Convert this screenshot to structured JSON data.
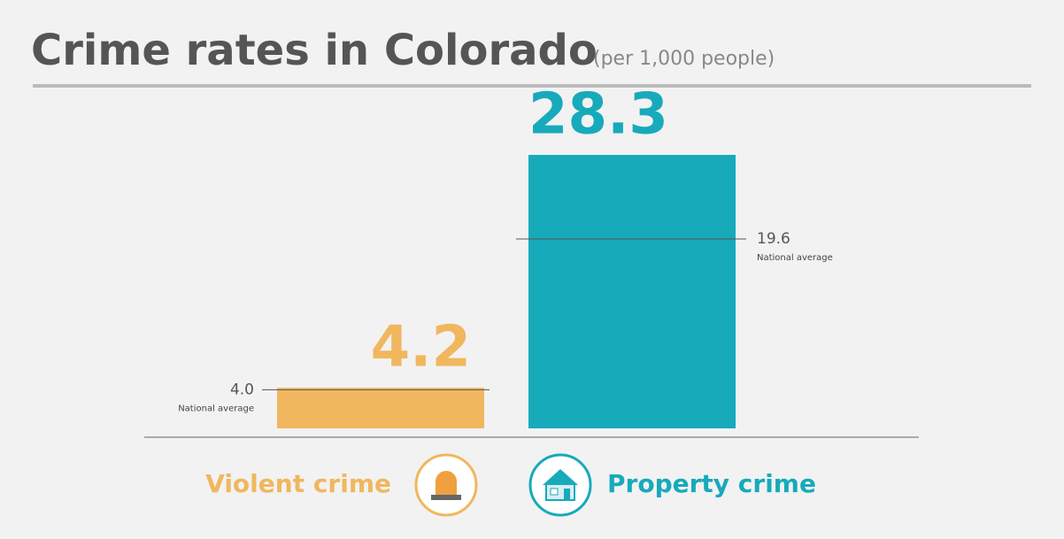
{
  "chart_data": {
    "type": "bar",
    "title": "Crime rates in Colorado",
    "subtitle": "(per 1,000 people)",
    "categories": [
      "Violent crime",
      "Property crime"
    ],
    "values": [
      4.2,
      28.3
    ],
    "colors": [
      "#f0b75e",
      "#17aabb"
    ],
    "national_average": {
      "label": "National average",
      "values": [
        4.0,
        19.6
      ],
      "value_labels": [
        "4.0",
        "19.6"
      ]
    }
  }
}
